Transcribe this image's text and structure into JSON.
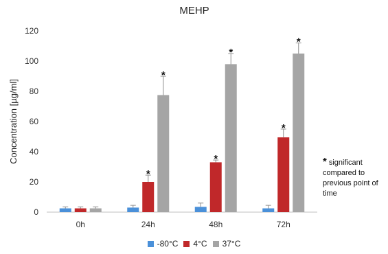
{
  "chart_data": {
    "type": "bar",
    "title": "MEHP",
    "ylabel": "Concentration [µg/ml]",
    "xlabel": "",
    "categories": [
      "0h",
      "24h",
      "48h",
      "72h"
    ],
    "ylim": [
      0,
      120
    ],
    "yticks": [
      0,
      20,
      40,
      60,
      80,
      100,
      120
    ],
    "grid": false,
    "legend_position": "bottom",
    "series": [
      {
        "name": "-80°C",
        "color": "#4a90d9",
        "values": [
          2.5,
          3.0,
          3.5,
          2.5
        ],
        "errors": [
          1.0,
          1.5,
          2.5,
          2.0
        ],
        "significant": [
          false,
          false,
          false,
          false
        ]
      },
      {
        "name": "4°C",
        "color": "#c0282a",
        "values": [
          2.5,
          20.0,
          33.0,
          49.5
        ],
        "errors": [
          1.0,
          4.5,
          1.5,
          5.5
        ],
        "significant": [
          false,
          true,
          true,
          true
        ]
      },
      {
        "name": "37°C",
        "color": "#a5a5a5",
        "values": [
          2.5,
          77.5,
          98.0,
          105.0
        ],
        "errors": [
          1.0,
          12.5,
          7.0,
          7.0
        ],
        "significant": [
          false,
          true,
          true,
          true
        ]
      }
    ],
    "significance_marker": "*",
    "annotation": {
      "marker": "*",
      "text": "significant compared to previous point of time"
    }
  }
}
